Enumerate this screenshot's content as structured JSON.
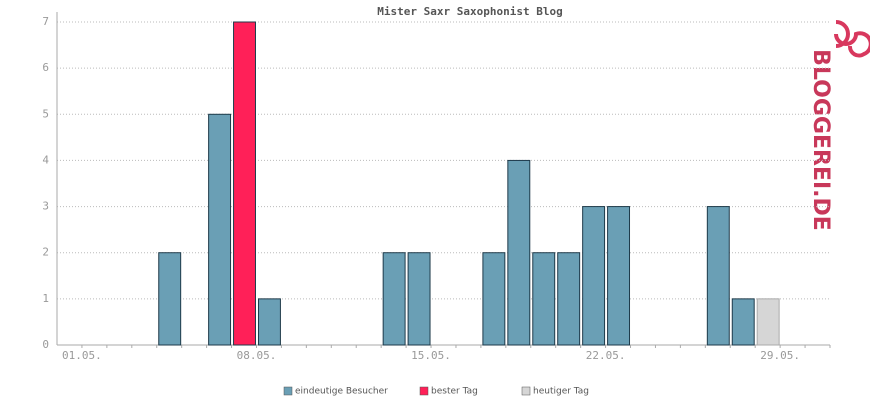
{
  "chart_data": {
    "type": "bar",
    "title": "Mister Saxr Saxophonist Blog",
    "categories": [
      "01.05.",
      null,
      null,
      null,
      null,
      null,
      null,
      "08.05.",
      null,
      null,
      null,
      null,
      null,
      null,
      "15.05.",
      null,
      null,
      null,
      null,
      null,
      null,
      "22.05.",
      null,
      null,
      null,
      null,
      null,
      null,
      "29.05.",
      null,
      null
    ],
    "series": [
      {
        "name": "eindeutige Besucher",
        "color": "#6a9fb5",
        "values": [
          0,
          0,
          0,
          0,
          2,
          0,
          5,
          null,
          1,
          0,
          0,
          0,
          0,
          2,
          2,
          0,
          0,
          2,
          4,
          2,
          2,
          3,
          3,
          0,
          0,
          0,
          3,
          1,
          null,
          null,
          null
        ]
      },
      {
        "name": "bester Tag",
        "color": "#ff2058",
        "values": [
          null,
          null,
          null,
          null,
          null,
          null,
          null,
          7,
          null,
          null,
          null,
          null,
          null,
          null,
          null,
          null,
          null,
          null,
          null,
          null,
          null,
          null,
          null,
          null,
          null,
          null,
          null,
          null,
          null,
          null,
          null
        ]
      },
      {
        "name": "heutiger Tag",
        "color": "#d6d6d6",
        "values": [
          null,
          null,
          null,
          null,
          null,
          null,
          null,
          null,
          null,
          null,
          null,
          null,
          null,
          null,
          null,
          null,
          null,
          null,
          null,
          null,
          null,
          null,
          null,
          null,
          null,
          null,
          null,
          null,
          1,
          null,
          null
        ]
      }
    ],
    "ylim": [
      0,
      7
    ],
    "yticks": [
      0,
      1,
      2,
      3,
      4,
      5,
      6,
      7
    ],
    "grid": true
  },
  "logo": "BLOGGEREI.DE"
}
